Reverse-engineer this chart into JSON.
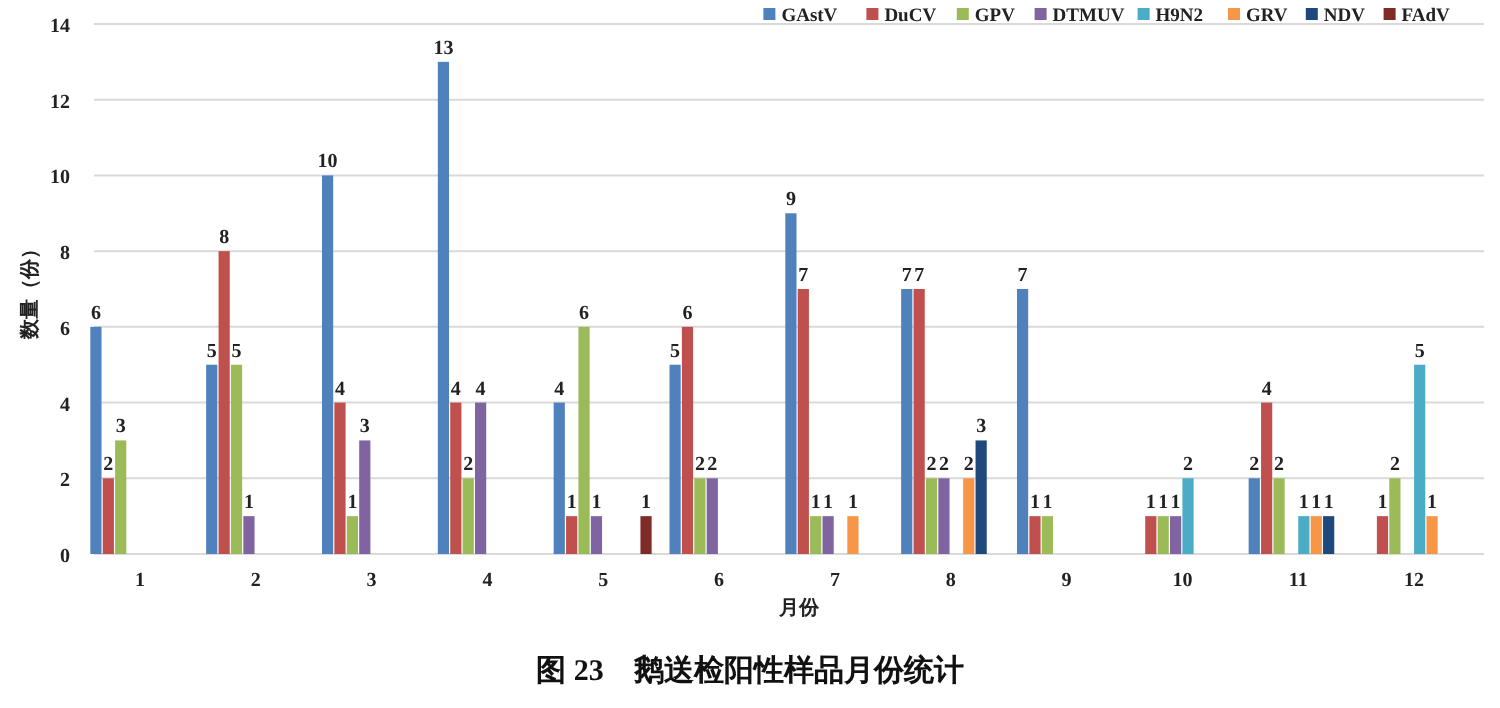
{
  "chart_data": {
    "type": "bar",
    "title": "图 23　鹅送检阳性样品月份统计",
    "xlabel": "月份",
    "ylabel": "数量（份）",
    "categories": [
      "1",
      "2",
      "3",
      "4",
      "5",
      "6",
      "7",
      "8",
      "9",
      "10",
      "11",
      "12"
    ],
    "series": [
      {
        "name": "GAstV",
        "color": "#4f81bd",
        "values": [
          6,
          5,
          10,
          13,
          4,
          5,
          9,
          7,
          7,
          null,
          2,
          null
        ]
      },
      {
        "name": "DuCV",
        "color": "#c0504d",
        "values": [
          2,
          8,
          4,
          4,
          1,
          6,
          7,
          7,
          1,
          1,
          4,
          1
        ]
      },
      {
        "name": "GPV",
        "color": "#9bbb59",
        "values": [
          3,
          5,
          1,
          2,
          6,
          2,
          1,
          2,
          1,
          1,
          2,
          2
        ]
      },
      {
        "name": "DTMUV",
        "color": "#8064a2",
        "values": [
          null,
          1,
          3,
          4,
          1,
          2,
          1,
          2,
          null,
          1,
          null,
          null
        ]
      },
      {
        "name": "H9N2",
        "color": "#4bacc6",
        "values": [
          null,
          null,
          null,
          null,
          null,
          null,
          null,
          null,
          null,
          2,
          1,
          5
        ]
      },
      {
        "name": "GRV",
        "color": "#f79646",
        "values": [
          null,
          null,
          null,
          null,
          null,
          null,
          1,
          2,
          null,
          null,
          1,
          1
        ]
      },
      {
        "name": "NDV",
        "color": "#1f497d",
        "values": [
          null,
          null,
          null,
          null,
          null,
          null,
          null,
          3,
          null,
          null,
          1,
          null
        ]
      },
      {
        "name": "FAdV",
        "color": "#7f2b28",
        "values": [
          null,
          null,
          null,
          null,
          1,
          null,
          null,
          null,
          null,
          null,
          null,
          null
        ]
      }
    ],
    "ylim": [
      0,
      14
    ],
    "yticks": [
      0,
      2,
      4,
      6,
      8,
      10,
      12,
      14
    ],
    "grid": "y",
    "legend": "top right",
    "data_labels": true
  }
}
